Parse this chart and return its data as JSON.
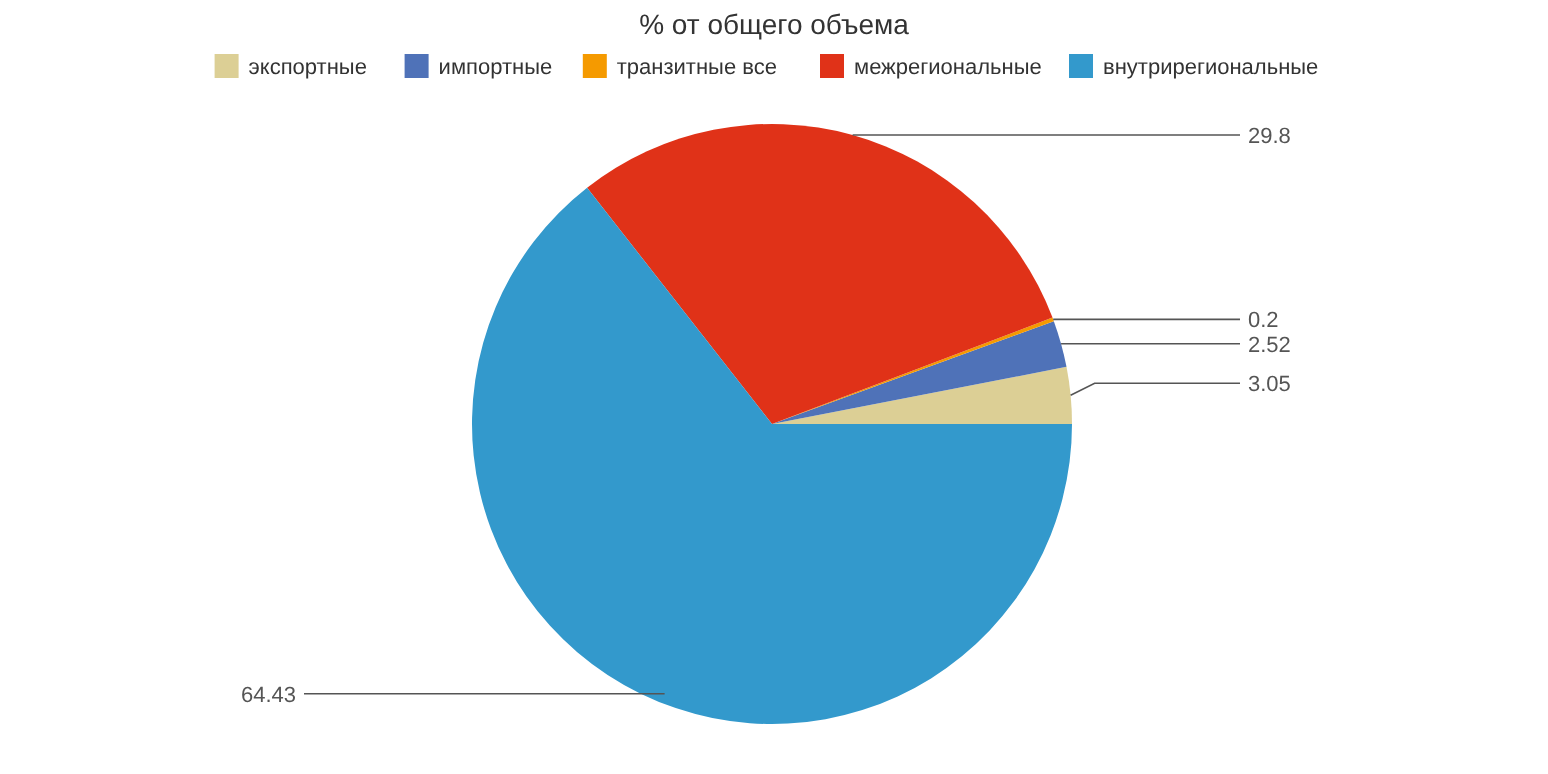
{
  "chart_data": {
    "type": "pie",
    "title": "% от общего объема",
    "categories": [
      "экспортные",
      "импортные",
      "транзитные все",
      "межрегиональные",
      "внутрирегиональные"
    ],
    "values": [
      3.05,
      2.52,
      0.2,
      29.8,
      64.43
    ],
    "colors": [
      "#dccf95",
      "#4f72b8",
      "#f59a00",
      "#e03218",
      "#3399cc"
    ],
    "data_labels": true,
    "legend": "top"
  }
}
